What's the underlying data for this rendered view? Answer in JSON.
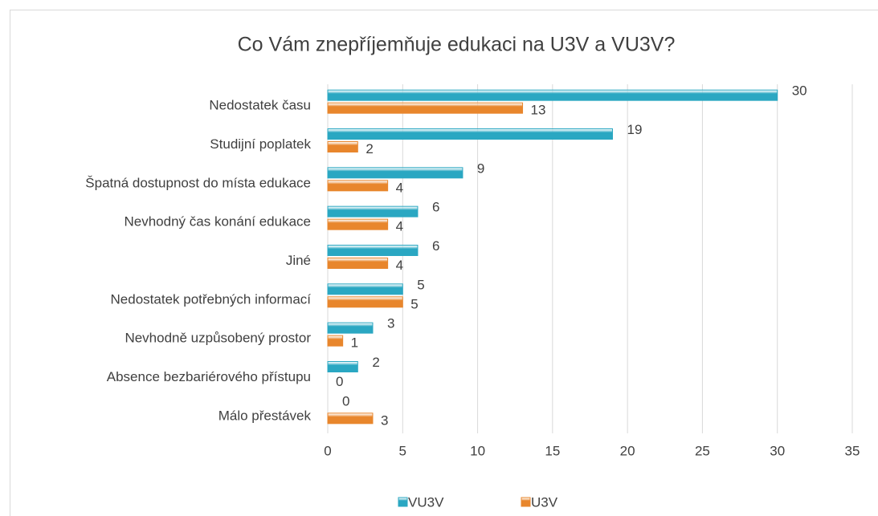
{
  "chart_data": {
    "type": "bar",
    "title": "Co Vám znepříjemňuje edukaci na U3V a VU3V?",
    "categories": [
      "Nedostatek času",
      "Studijní poplatek",
      "Špatná dostupnost do místa edukace",
      "Nevhodný čas konání edukace",
      "Jiné",
      "Nedostatek potřebných informací ",
      "Nevhodně uzpůsobený prostor",
      "Absence bezbariérového přístupu",
      "Málo přestávek"
    ],
    "series": [
      {
        "name": "VU3V",
        "color": "#2aa7c2",
        "values": [
          30,
          19,
          9,
          6,
          6,
          5,
          3,
          2,
          0
        ]
      },
      {
        "name": "U3V",
        "color": "#e8862c",
        "values": [
          13,
          2,
          4,
          4,
          4,
          5,
          1,
          0,
          3
        ]
      }
    ],
    "xlim": [
      0,
      35
    ],
    "xticks": [
      0,
      5,
      10,
      15,
      20,
      25,
      30,
      35
    ],
    "grid": true,
    "legend": "bottom"
  }
}
